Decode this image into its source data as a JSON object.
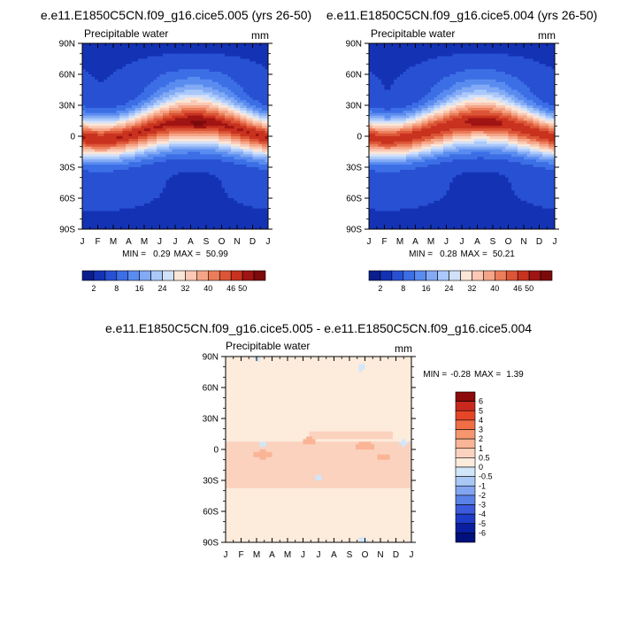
{
  "chart_data": [
    {
      "type": "heatmap",
      "title": "e.e11.E1850C5CN.f09_g16.cice5.005 (yrs 26-50)",
      "left_label": "Precipitable water",
      "units": "mm",
      "x_ticks": [
        "J",
        "F",
        "M",
        "A",
        "M",
        "J",
        "J",
        "A",
        "S",
        "O",
        "N",
        "D",
        "J"
      ],
      "y_ticks": [
        "90N",
        "60N",
        "30N",
        "0",
        "30S",
        "60S",
        "90S"
      ],
      "stats": {
        "min_label": "MIN =",
        "min": "0.29",
        "max_label": "MAX =",
        "max": "50.99"
      },
      "colorbar": {
        "labels": [
          "2",
          "8",
          "16",
          "24",
          "32",
          "40",
          "46",
          "50"
        ],
        "colors": [
          "#0a1e8c",
          "#1432b4",
          "#2850d2",
          "#3c6ee6",
          "#5a8cf0",
          "#82aaf5",
          "#aac8fa",
          "#d2e1fa",
          "#fae6d7",
          "#fac8b4",
          "#f5a587",
          "#eb7d5a",
          "#dc5537",
          "#c8321e",
          "#a01414",
          "#7d0a0a"
        ]
      },
      "pattern": "annual cycle: peak near Jul-Aug around 10N (~50 mm), minimum at both poles"
    },
    {
      "type": "heatmap",
      "title": "e.e11.E1850C5CN.f09_g16.cice5.004 (yrs 26-50)",
      "left_label": "Precipitable water",
      "units": "mm",
      "x_ticks": [
        "J",
        "F",
        "M",
        "A",
        "M",
        "J",
        "J",
        "A",
        "S",
        "O",
        "N",
        "D",
        "J"
      ],
      "y_ticks": [
        "90N",
        "60N",
        "30N",
        "0",
        "30S",
        "60S",
        "90S"
      ],
      "stats": {
        "min_label": "MIN =",
        "min": "0.28",
        "max_label": "MAX =",
        "max": "50.21"
      },
      "colorbar": {
        "labels": [
          "2",
          "8",
          "16",
          "24",
          "32",
          "40",
          "46",
          "50"
        ],
        "colors": [
          "#0a1e8c",
          "#1432b4",
          "#2850d2",
          "#3c6ee6",
          "#5a8cf0",
          "#82aaf5",
          "#aac8fa",
          "#d2e1fa",
          "#fae6d7",
          "#fac8b4",
          "#f5a587",
          "#eb7d5a",
          "#dc5537",
          "#c8321e",
          "#a01414",
          "#7d0a0a"
        ]
      },
      "pattern": "annual cycle: peak near Jul-Aug around 10N (~50 mm), minimum at both poles"
    },
    {
      "type": "heatmap",
      "title": "e.e11.E1850C5CN.f09_g16.cice5.005 - e.e11.E1850C5CN.f09_g16.cice5.004",
      "left_label": "Precipitable water",
      "units": "mm",
      "x_ticks": [
        "J",
        "F",
        "M",
        "A",
        "M",
        "J",
        "J",
        "A",
        "S",
        "O",
        "N",
        "D",
        "J"
      ],
      "y_ticks": [
        "90N",
        "60N",
        "30N",
        "0",
        "30S",
        "60S",
        "90S"
      ],
      "stats": {
        "min_label": "MIN =",
        "min": "-0.28",
        "max_label": "MAX =",
        "max": "1.39"
      },
      "colorbar": {
        "labels": [
          "6",
          "5",
          "4",
          "3",
          "2",
          "1",
          "0.5",
          "0",
          "-0.5",
          "-1",
          "-2",
          "-3",
          "-4",
          "-5",
          "-6"
        ],
        "colors": [
          "#8c0a0a",
          "#c8281e",
          "#e64628",
          "#f06e46",
          "#f5966e",
          "#fab496",
          "#fad2be",
          "#fdebdc",
          "#d2e6fa",
          "#aac8f5",
          "#82a5f0",
          "#5a82e6",
          "#3c5adc",
          "#1e3cc8",
          "#0a1ea0",
          "#00107d"
        ]
      },
      "pattern": "mostly 0 to 0.5 mm; 0.5-1 mm band between 30S and 10N; a few small negative spots"
    }
  ]
}
